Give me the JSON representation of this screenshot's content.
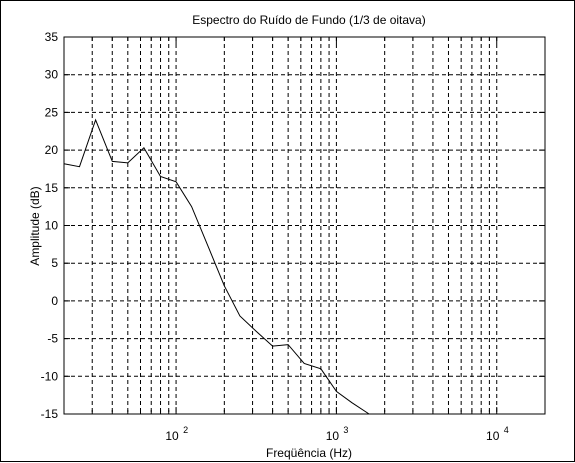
{
  "chart_data": {
    "type": "line",
    "title": "Espectro do Ruído de Fundo (1/3 de oitava)",
    "xlabel": "Freqüência (Hz)",
    "ylabel": "Amplitude (dB)",
    "xscale": "log",
    "xlim": [
      20,
      20000
    ],
    "ylim": [
      -15,
      35
    ],
    "grid": true,
    "line_style": "dashed-grid",
    "yticks": [
      35,
      30,
      25,
      20,
      15,
      10,
      5,
      0,
      -5,
      -10,
      -15
    ],
    "ytick_labels": [
      "35",
      "30",
      "25",
      "20",
      "15",
      "10",
      "5",
      "0",
      "-5",
      "-10",
      "-15"
    ],
    "xticks": [
      {
        "value": 100,
        "base": "10",
        "exp": "2"
      },
      {
        "value": 1000,
        "base": "10",
        "exp": "3"
      },
      {
        "value": 10000,
        "base": "10",
        "exp": "4"
      }
    ],
    "series": [
      {
        "color": "#000000",
        "x": [
          20,
          25,
          31.5,
          40,
          50,
          63,
          80,
          100,
          125,
          160,
          200,
          250,
          315,
          400,
          500,
          630,
          800,
          1000,
          1250,
          1600
        ],
        "y": [
          18.2,
          17.8,
          24.0,
          18.5,
          18.3,
          20.3,
          16.5,
          15.8,
          12.5,
          7.0,
          2.0,
          -2.0,
          -4.0,
          -6.0,
          -5.8,
          -8.3,
          -9.0,
          -12.0,
          -13.5,
          -15.0
        ]
      }
    ]
  }
}
